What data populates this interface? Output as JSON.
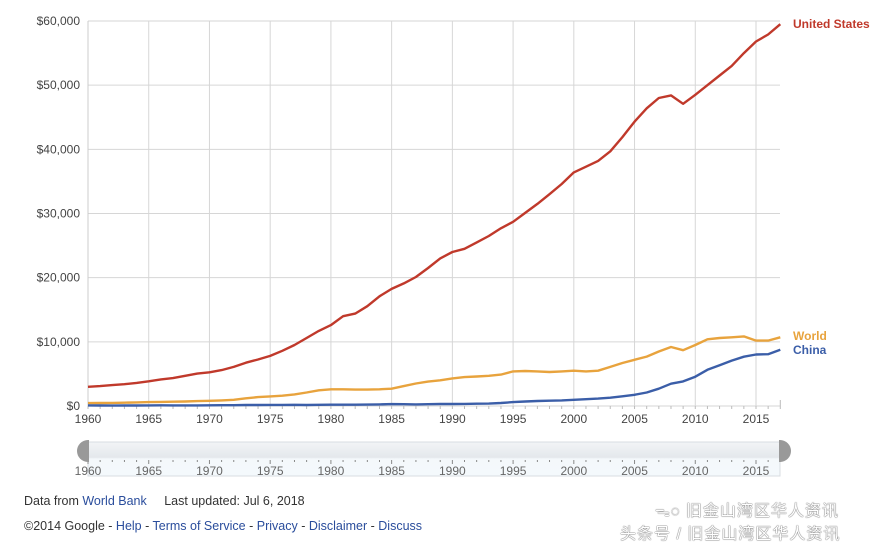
{
  "chart_data": {
    "type": "line",
    "title": "",
    "xlabel": "",
    "ylabel": "",
    "ylim": [
      0,
      60000
    ],
    "xlim": [
      1960,
      2017
    ],
    "grid": true,
    "legend_position": "right-inline",
    "y_ticks": [
      "$0",
      "$10,000",
      "$20,000",
      "$30,000",
      "$40,000",
      "$50,000",
      "$60,000"
    ],
    "x_ticks": [
      "1960",
      "1965",
      "1970",
      "1975",
      "1980",
      "1985",
      "1990",
      "1995",
      "2000",
      "2005",
      "2010",
      "2015"
    ],
    "x": [
      1960,
      1961,
      1962,
      1963,
      1964,
      1965,
      1966,
      1967,
      1968,
      1969,
      1970,
      1971,
      1972,
      1973,
      1974,
      1975,
      1976,
      1977,
      1978,
      1979,
      1980,
      1981,
      1982,
      1983,
      1984,
      1985,
      1986,
      1987,
      1988,
      1989,
      1990,
      1991,
      1992,
      1993,
      1994,
      1995,
      1996,
      1997,
      1998,
      1999,
      2000,
      2001,
      2002,
      2003,
      2004,
      2005,
      2006,
      2007,
      2008,
      2009,
      2010,
      2011,
      2012,
      2013,
      2014,
      2015,
      2016,
      2017
    ],
    "series": [
      {
        "name": "United States",
        "color": "#c0392b",
        "values": [
          3000,
          3100,
          3250,
          3400,
          3600,
          3850,
          4150,
          4350,
          4700,
          5050,
          5250,
          5600,
          6100,
          6750,
          7250,
          7800,
          8600,
          9500,
          10600,
          11700,
          12600,
          14000,
          14400,
          15550,
          17100,
          18250,
          19100,
          20100,
          21500,
          23000,
          24000,
          24500,
          25500,
          26500,
          27700,
          28700,
          30100,
          31500,
          33000,
          34600,
          36400,
          37300,
          38200,
          39700,
          41900,
          44300,
          46400,
          48000,
          48400,
          47100,
          48500,
          50000,
          51500,
          53000,
          55000,
          56800,
          57900,
          59500
        ]
      },
      {
        "name": "World",
        "color": "#e8a33d",
        "values": [
          450,
          470,
          490,
          520,
          560,
          600,
          640,
          670,
          700,
          760,
          810,
          870,
          970,
          1200,
          1380,
          1500,
          1600,
          1800,
          2100,
          2450,
          2600,
          2600,
          2550,
          2550,
          2600,
          2700,
          3100,
          3500,
          3800,
          4000,
          4300,
          4500,
          4600,
          4700,
          4900,
          5400,
          5450,
          5400,
          5300,
          5400,
          5500,
          5400,
          5500,
          6100,
          6700,
          7200,
          7700,
          8500,
          9200,
          8700,
          9500,
          10400,
          10600,
          10700,
          10850,
          10200,
          10200,
          10700
        ]
      },
      {
        "name": "China",
        "color": "#3b5ea8",
        "values": [
          90,
          75,
          70,
          75,
          85,
          98,
          105,
          95,
          90,
          100,
          112,
          118,
          132,
          155,
          160,
          178,
          165,
          185,
          156,
          183,
          195,
          197,
          203,
          225,
          250,
          294,
          281,
          252,
          284,
          311,
          318,
          333,
          366,
          377,
          473,
          610,
          709,
          782,
          829,
          873,
          959,
          1053,
          1149,
          1289,
          1509,
          1753,
          2099,
          2695,
          3471,
          3838,
          4560,
          5634,
          6338,
          7078,
          7684,
          8033,
          8079,
          8759
        ]
      }
    ]
  },
  "slider": {
    "range_start": "1960",
    "range_end": "2017",
    "tick_labels": [
      "1960",
      "1965",
      "1970",
      "1975",
      "1980",
      "1985",
      "1990",
      "1995",
      "2000",
      "2005",
      "2010",
      "2015"
    ]
  },
  "footer": {
    "data_from_prefix": "Data from ",
    "data_source_link": "World Bank",
    "last_updated": "Last updated: Jul 6, 2018",
    "copyright": "©2014 Google - ",
    "links": [
      "Help",
      "Terms of Service",
      "Privacy",
      "Disclaimer",
      "Discuss"
    ],
    "separator": " - "
  },
  "watermark": {
    "line1": "旧金山湾区华人资讯",
    "line2": "头条号 / 旧金山湾区华人资讯",
    "icon": "wechat-icon"
  }
}
